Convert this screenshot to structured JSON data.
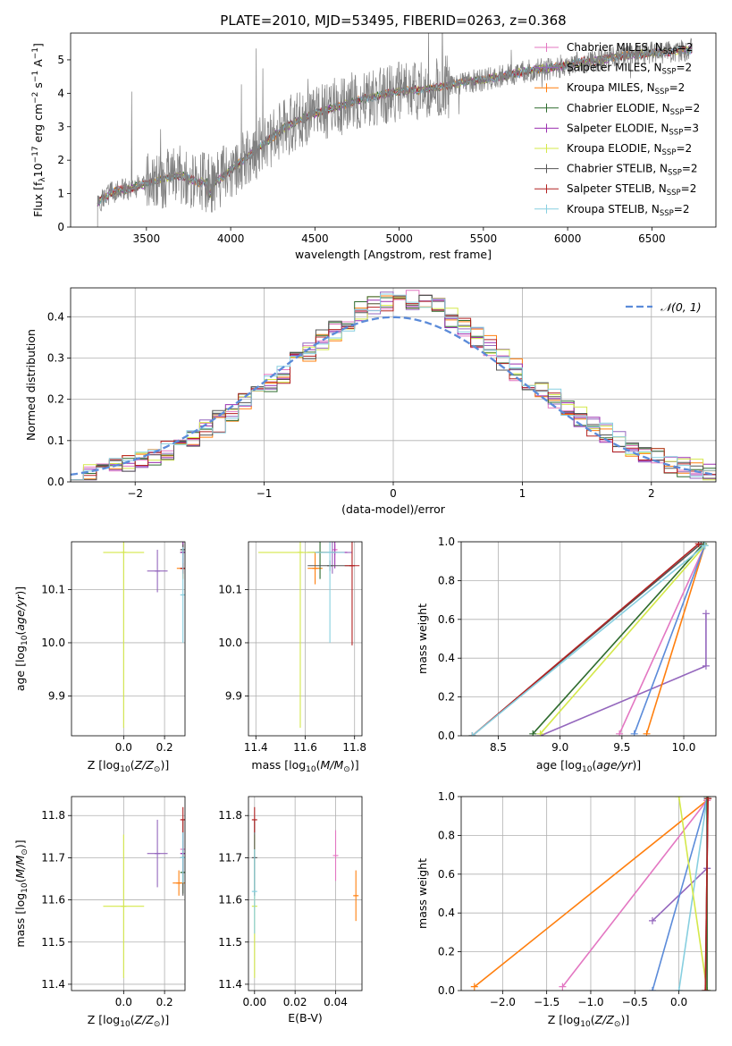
{
  "title": "PLATE=2010, MJD=53495, FIBERID=0263, z=0.368",
  "model_colors": [
    "#e377c2",
    "#9467bd",
    "#ff7f0e",
    "#2e6b2e",
    "#9b30b0",
    "#d4e84a",
    "#555555",
    "#b22222",
    "#87cfe0"
  ],
  "chart_data": [
    {
      "type": "line",
      "id": "spectrum",
      "title": "PLATE=2010, MJD=53495, FIBERID=0263, z=0.368",
      "xlabel": "wavelength [Angstrom, rest frame]",
      "ylabel": "Flux [f_λ 10^-17 erg cm^-2 s^-1 A^-1]",
      "xlim": [
        3050,
        6880
      ],
      "ylim": [
        0,
        5.8
      ],
      "xticks": [
        3500,
        4000,
        4500,
        5000,
        5500,
        6000,
        6500
      ],
      "yticks": [
        0,
        1,
        2,
        3,
        4,
        5
      ],
      "grid": false,
      "legend_placement": "top-right",
      "data_shape": {
        "x": [
          3210,
          3300,
          3400,
          3500,
          3600,
          3700,
          3800,
          3900,
          4000,
          4100,
          4200,
          4300,
          4400,
          4500,
          4600,
          4700,
          4800,
          4900,
          5000,
          5100,
          5200,
          5300,
          5400,
          5500,
          5600,
          5700,
          5800,
          5900,
          6000,
          6100,
          6200,
          6300,
          6400,
          6500,
          6600,
          6740
        ],
        "y": [
          0.75,
          1.05,
          1.15,
          1.3,
          1.45,
          1.55,
          1.35,
          1.3,
          1.7,
          2.1,
          2.5,
          2.9,
          3.2,
          3.4,
          3.55,
          3.7,
          3.85,
          3.95,
          4.05,
          4.1,
          4.15,
          4.25,
          4.35,
          4.4,
          4.5,
          4.6,
          4.7,
          4.75,
          4.85,
          4.95,
          5.0,
          5.1,
          5.15,
          5.2,
          5.25,
          5.3
        ]
      },
      "series": [
        {
          "name": "Chabrier MILES, N_SSP=2",
          "label_main": "Chabrier MILES, N",
          "label_sub": "SSP",
          "label_tail": "=2"
        },
        {
          "name": "Salpeter MILES, N_SSP=2",
          "label_main": "Salpeter MILES, N",
          "label_sub": "SSP",
          "label_tail": "=2"
        },
        {
          "name": "Kroupa MILES, N_SSP=2",
          "label_main": "Kroupa MILES, N",
          "label_sub": "SSP",
          "label_tail": "=2"
        },
        {
          "name": "Chabrier ELODIE, N_SSP=2",
          "label_main": "Chabrier ELODIE, N",
          "label_sub": "SSP",
          "label_tail": "=2"
        },
        {
          "name": "Salpeter ELODIE, N_SSP=3",
          "label_main": "Salpeter ELODIE, N",
          "label_sub": "SSP",
          "label_tail": "=3"
        },
        {
          "name": "Kroupa ELODIE, N_SSP=2",
          "label_main": "Kroupa ELODIE, N",
          "label_sub": "SSP",
          "label_tail": "=2"
        },
        {
          "name": "Chabrier STELIB, N_SSP=2",
          "label_main": "Chabrier STELIB, N",
          "label_sub": "SSP",
          "label_tail": "=2"
        },
        {
          "name": "Salpeter STELIB, N_SSP=2",
          "label_main": "Salpeter STELIB, N",
          "label_sub": "SSP",
          "label_tail": "=2"
        },
        {
          "name": "Kroupa STELIB, N_SSP=2",
          "label_main": "Kroupa STELIB, N",
          "label_sub": "SSP",
          "label_tail": "=2"
        }
      ]
    },
    {
      "type": "bar",
      "id": "residuals",
      "xlabel": "(data-model)/error",
      "ylabel": "Normed distribution",
      "xlim": [
        -2.5,
        2.5
      ],
      "ylim": [
        0,
        0.47
      ],
      "xticks": [
        -2,
        -1,
        0,
        1,
        2
      ],
      "xtick_labels": [
        "−2",
        "−1",
        "0",
        "1",
        "2"
      ],
      "yticks": [
        0.0,
        0.1,
        0.2,
        0.3,
        0.4
      ],
      "grid": true,
      "legend_placement": "top-right",
      "legend_label": "𝒩(0, 1)",
      "reference_curve": {
        "type": "gaussian",
        "mean": 0,
        "sigma": 1,
        "color": "#5b8bd9"
      },
      "bin_width": 0.1
    },
    {
      "type": "scatter",
      "id": "age_vs_Z",
      "xlabel": "Z [log10(Z/Z☉)]",
      "ylabel": "age [log10(age/yr)]",
      "xlim": [
        -0.255,
        0.3
      ],
      "ylim": [
        9.825,
        10.19
      ],
      "xticks": [
        0.0,
        0.2
      ],
      "yticks": [
        9.9,
        10.0,
        10.1
      ],
      "grid": true,
      "points": [
        {
          "series": 0,
          "x": 0.29,
          "y": 10.14,
          "xerr": 0.01,
          "yerr": 0.01
        },
        {
          "series": 1,
          "x": 0.165,
          "y": 10.135,
          "xerr": 0.05,
          "yerr": 0.04
        },
        {
          "series": 2,
          "x": 0.29,
          "y": 10.14,
          "xerr": 0.03,
          "yerr": 0.02
        },
        {
          "series": 3,
          "x": 0.29,
          "y": 10.17,
          "xerr": 0.01,
          "yerr": 0.03
        },
        {
          "series": 4,
          "x": 0.29,
          "y": 10.17,
          "xerr": 0.01,
          "yerr": 0.03
        },
        {
          "series": 5,
          "x": 0.0,
          "y": 10.17,
          "xerr": 0.1,
          "yerr": 0.33
        },
        {
          "series": 6,
          "x": 0.29,
          "y": 10.175,
          "xerr": 0.01,
          "yerr": 0.01
        },
        {
          "series": 7,
          "x": 0.29,
          "y": 10.14,
          "xerr": 0.01,
          "yerr": 0.01
        },
        {
          "series": 8,
          "x": 0.29,
          "y": 10.09,
          "xerr": 0.01,
          "yerr": 0.09
        }
      ]
    },
    {
      "type": "scatter",
      "id": "age_vs_mass",
      "xlabel": "mass [log10(M/M☉)]",
      "ylabel": "",
      "xlim": [
        11.37,
        11.83
      ],
      "ylim": [
        9.825,
        10.19
      ],
      "xticks": [
        11.4,
        11.6,
        11.8
      ],
      "yticks": [
        9.9,
        10.0,
        10.1
      ],
      "grid": true,
      "points": [
        {
          "series": 0,
          "x": 11.72,
          "y": 10.175,
          "xerr": 0.01,
          "yerr": 0.01
        },
        {
          "series": 1,
          "x": 11.71,
          "y": 10.17,
          "xerr": 0.08,
          "yerr": 0.04
        },
        {
          "series": 2,
          "x": 11.64,
          "y": 10.14,
          "xerr": 0.03,
          "yerr": 0.03
        },
        {
          "series": 3,
          "x": 11.66,
          "y": 10.17,
          "xerr": 0.05,
          "yerr": 0.05
        },
        {
          "series": 4,
          "x": 11.72,
          "y": 10.17,
          "xerr": 0.05,
          "yerr": 0.03
        },
        {
          "series": 5,
          "x": 11.58,
          "y": 10.17,
          "xerr": 0.17,
          "yerr": 0.33
        },
        {
          "series": 6,
          "x": 11.7,
          "y": 10.145,
          "xerr": 0.09,
          "yerr": 0.01
        },
        {
          "series": 7,
          "x": 11.79,
          "y": 10.145,
          "xerr": 0.03,
          "yerr": 0.15
        },
        {
          "series": 8,
          "x": 11.7,
          "y": 10.17,
          "xerr": 0.06,
          "yerr": 0.17
        }
      ]
    },
    {
      "type": "line",
      "id": "massweight_vs_age",
      "xlabel": "age [log10(age/yr)]",
      "ylabel": "mass weight",
      "xlim": [
        8.2,
        10.26
      ],
      "ylim": [
        0,
        1.0
      ],
      "xticks": [
        8.5,
        9.0,
        9.5,
        10.0
      ],
      "yticks": [
        0.0,
        0.2,
        0.4,
        0.6,
        0.8,
        1.0
      ],
      "grid": true,
      "series": [
        {
          "color": "#e377c2",
          "x": [
            9.48,
            10.17
          ],
          "y": [
            0.01,
            0.98
          ]
        },
        {
          "color": "#9467bd",
          "x": [
            8.84,
            10.18,
            10.18
          ],
          "y": [
            0.0,
            0.36,
            0.63
          ]
        },
        {
          "color": "#ff7f0e",
          "x": [
            9.7,
            10.17
          ],
          "y": [
            0.01,
            0.98
          ]
        },
        {
          "color": "#2e6b2e",
          "x": [
            8.78,
            10.16
          ],
          "y": [
            0.01,
            0.99
          ]
        },
        {
          "color": "#5b8bd9",
          "x": [
            9.6,
            10.17
          ],
          "y": [
            0.01,
            0.98
          ]
        },
        {
          "color": "#d4e84a",
          "x": [
            8.84,
            10.17
          ],
          "y": [
            0.01,
            0.98
          ]
        },
        {
          "color": "#555555",
          "x": [
            8.29,
            10.14
          ],
          "y": [
            0.0,
            0.99
          ]
        },
        {
          "color": "#b22222",
          "x": [
            8.29,
            10.12
          ],
          "y": [
            0.0,
            0.99
          ]
        },
        {
          "color": "#87cfe0",
          "x": [
            8.29,
            10.17
          ],
          "y": [
            0.0,
            0.98
          ]
        }
      ]
    },
    {
      "type": "scatter",
      "id": "mass_vs_Z",
      "xlabel": "Z [log10(Z/Z☉)]",
      "ylabel": "mass [log10(M/M☉)]",
      "xlim": [
        -0.255,
        0.3
      ],
      "ylim": [
        11.385,
        11.845
      ],
      "xticks": [
        0.0,
        0.2
      ],
      "yticks": [
        11.4,
        11.5,
        11.6,
        11.7,
        11.8
      ],
      "grid": true,
      "points": [
        {
          "series": 0,
          "x": 0.29,
          "y": 11.72,
          "xerr": 0.01,
          "yerr": 0.02
        },
        {
          "series": 1,
          "x": 0.165,
          "y": 11.71,
          "xerr": 0.05,
          "yerr": 0.08
        },
        {
          "series": 2,
          "x": 0.27,
          "y": 11.64,
          "xerr": 0.03,
          "yerr": 0.03
        },
        {
          "series": 3,
          "x": 0.29,
          "y": 11.665,
          "xerr": 0.01,
          "yerr": 0.05
        },
        {
          "series": 4,
          "x": 0.29,
          "y": 11.71,
          "xerr": 0.01,
          "yerr": 0.05
        },
        {
          "series": 5,
          "x": 0.0,
          "y": 11.585,
          "xerr": 0.1,
          "yerr": 0.17
        },
        {
          "series": 6,
          "x": 0.29,
          "y": 11.7,
          "xerr": 0.01,
          "yerr": 0.09
        },
        {
          "series": 7,
          "x": 0.29,
          "y": 11.79,
          "xerr": 0.01,
          "yerr": 0.03
        },
        {
          "series": 8,
          "x": 0.29,
          "y": 11.7,
          "xerr": 0.01,
          "yerr": 0.06
        }
      ]
    },
    {
      "type": "scatter",
      "id": "mass_vs_ebv",
      "xlabel": "E(B-V)",
      "ylabel": "",
      "xlim": [
        -0.003,
        0.053
      ],
      "ylim": [
        11.385,
        11.845
      ],
      "xticks": [
        0.0,
        0.02,
        0.04
      ],
      "xtick_labels": [
        "0.00",
        "0.02",
        "0.04"
      ],
      "yticks": [
        11.4,
        11.5,
        11.6,
        11.7,
        11.8
      ],
      "grid": true,
      "points": [
        {
          "series": 0,
          "x": 0.04,
          "y": 11.705,
          "xerr": 0,
          "yerr": 0.06
        },
        {
          "series": 2,
          "x": 0.05,
          "y": 11.61,
          "xerr": 0,
          "yerr": 0.06
        },
        {
          "series": 5,
          "x": 0.0,
          "y": 11.585,
          "xerr": 0,
          "yerr": 0.17
        },
        {
          "series": 6,
          "x": 0.0,
          "y": 11.7,
          "xerr": 0,
          "yerr": 0.09
        },
        {
          "series": 7,
          "x": 0.0,
          "y": 11.79,
          "xerr": 0,
          "yerr": 0.03
        },
        {
          "series": 8,
          "x": 0.0,
          "y": 11.62,
          "xerr": 0,
          "yerr": 0.1
        }
      ]
    },
    {
      "type": "line",
      "id": "massweight_vs_Z",
      "xlabel": "Z [log10(Z/Z☉)]",
      "ylabel": "mass weight",
      "xlim": [
        -2.47,
        0.42
      ],
      "ylim": [
        0,
        1.0
      ],
      "xticks": [
        -2.0,
        -1.5,
        -1.0,
        -0.5,
        0.0
      ],
      "xtick_labels": [
        "−2.0",
        "−1.5",
        "−1.0",
        "−0.5",
        "0.0"
      ],
      "yticks": [
        0.0,
        0.2,
        0.4,
        0.6,
        0.8,
        1.0
      ],
      "grid": true,
      "series": [
        {
          "color": "#ff7f0e",
          "x": [
            -2.32,
            0.32
          ],
          "y": [
            0.02,
            0.98
          ]
        },
        {
          "color": "#e377c2",
          "x": [
            -1.32,
            0.32
          ],
          "y": [
            0.02,
            0.98
          ]
        },
        {
          "color": "#9467bd",
          "x": [
            -0.3,
            0.32,
            0.32,
            0.32
          ],
          "y": [
            0.36,
            0.63,
            0.63,
            0.99
          ]
        },
        {
          "color": "#5b8bd9",
          "x": [
            -0.3,
            0.32
          ],
          "y": [
            0.0,
            0.99
          ]
        },
        {
          "color": "#87cfe0",
          "x": [
            0.0,
            0.32
          ],
          "y": [
            0.0,
            0.99
          ]
        },
        {
          "color": "#d4e84a",
          "x": [
            0.0,
            0.32
          ],
          "y": [
            1.0,
            0.0
          ]
        },
        {
          "color": "#2e6b2e",
          "x": [
            0.32,
            0.32
          ],
          "y": [
            0.0,
            1.0
          ]
        },
        {
          "color": "#555555",
          "x": [
            0.3,
            0.33
          ],
          "y": [
            0.0,
            0.99
          ]
        },
        {
          "color": "#b22222",
          "x": [
            0.3,
            0.33
          ],
          "y": [
            0.0,
            0.99
          ]
        }
      ]
    }
  ]
}
